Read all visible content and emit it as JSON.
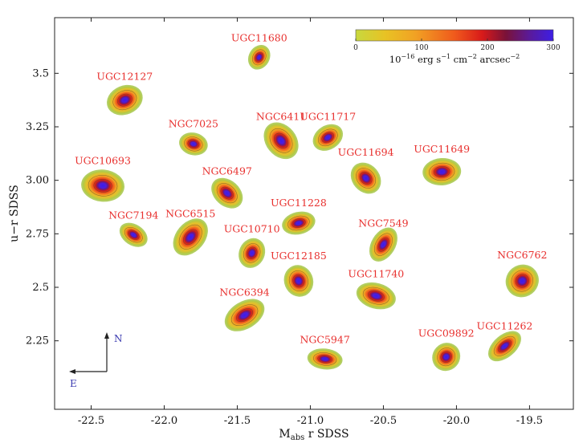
{
  "chart_data": {
    "type": "scatter",
    "xlabel": "M_abs r SDSS",
    "ylabel": "u−r SDSS",
    "xlim": [
      -22.75,
      -19.2
    ],
    "ylim": [
      1.93,
      3.76
    ],
    "xticks": [
      -22.5,
      -22.0,
      -21.5,
      -21.0,
      -20.5,
      -20.0,
      -19.5
    ],
    "xtick_labels": [
      "-22.5",
      "-22.0",
      "-21.5",
      "-21.0",
      "-20.5",
      "-20.0",
      "-19.5"
    ],
    "yticks": [
      2.25,
      2.5,
      2.75,
      3.0,
      3.25,
      3.5
    ],
    "ytick_labels": [
      "2.25",
      "2.5",
      "2.75",
      "3.00",
      "3.25",
      "3.5"
    ],
    "colorbar": {
      "ticks": [
        "0",
        "100",
        "200",
        "300"
      ],
      "range": [
        0,
        300
      ],
      "unit": "10⁻¹⁶ erg s⁻¹ cm⁻² arcsec⁻²",
      "colors": [
        "#b9d24a",
        "#e6c228",
        "#f1a224",
        "#f05a1c",
        "#d81a1a",
        "#7a1238",
        "#5a1a8a",
        "#4a1ee0"
      ]
    },
    "compass": {
      "north": "N",
      "east": "E"
    },
    "galaxies": [
      {
        "name": "UGC11680",
        "x": -21.35,
        "y": 3.575
      },
      {
        "name": "UGC12127",
        "x": -22.27,
        "y": 3.375
      },
      {
        "name": "NGC7025",
        "x": -21.8,
        "y": 3.17
      },
      {
        "name": "NGC6411",
        "x": -21.2,
        "y": 3.185
      },
      {
        "name": "UGC11717",
        "x": -20.88,
        "y": 3.2
      },
      {
        "name": "UGC10693",
        "x": -22.42,
        "y": 2.975
      },
      {
        "name": "NGC6497",
        "x": -21.57,
        "y": 2.94
      },
      {
        "name": "UGC11694",
        "x": -20.62,
        "y": 3.01
      },
      {
        "name": "UGC11649",
        "x": -20.1,
        "y": 3.04
      },
      {
        "name": "NGC7194",
        "x": -22.21,
        "y": 2.745
      },
      {
        "name": "NGC6515",
        "x": -21.82,
        "y": 2.735
      },
      {
        "name": "UGC11228",
        "x": -21.08,
        "y": 2.8
      },
      {
        "name": "UGC10710",
        "x": -21.4,
        "y": 2.66
      },
      {
        "name": "NGC7549",
        "x": -20.5,
        "y": 2.7
      },
      {
        "name": "UGC12185",
        "x": -21.08,
        "y": 2.53
      },
      {
        "name": "UGC11740",
        "x": -20.55,
        "y": 2.46
      },
      {
        "name": "NGC6762",
        "x": -19.55,
        "y": 2.53
      },
      {
        "name": "NGC6394",
        "x": -21.45,
        "y": 2.37
      },
      {
        "name": "NGC5947",
        "x": -20.9,
        "y": 2.165
      },
      {
        "name": "UGC09892",
        "x": -20.07,
        "y": 2.175
      },
      {
        "name": "UGC11262",
        "x": -19.67,
        "y": 2.225
      }
    ]
  }
}
